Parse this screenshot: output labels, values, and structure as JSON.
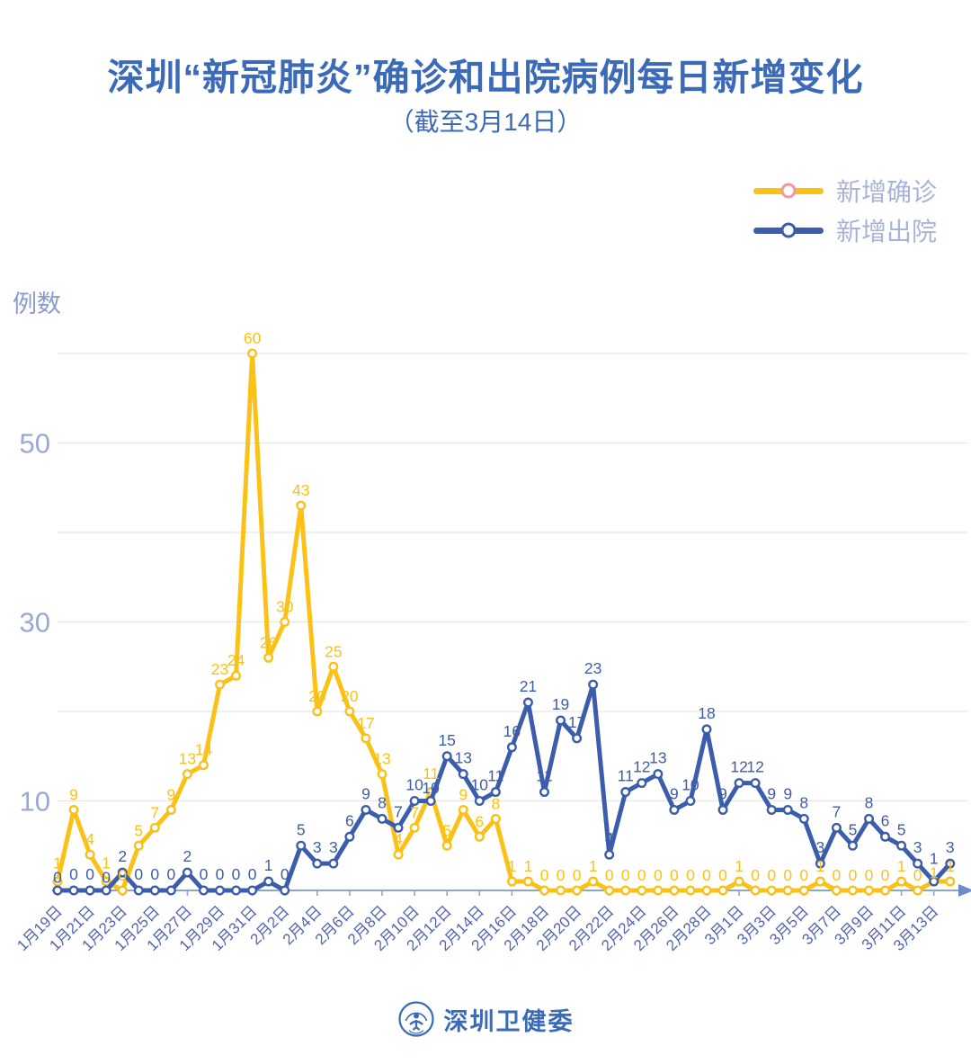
{
  "title": "深圳“新冠肺炎”确诊和出院病例每日新增变化",
  "subtitle": "（截至3月14日）",
  "y_axis_name": "例数",
  "legend": [
    {
      "label": "新增确诊",
      "color": "#fcc117",
      "marker_stroke": "#f09a9a"
    },
    {
      "label": "新增出院",
      "color": "#3c5dac",
      "marker_stroke": "#3c5dac"
    }
  ],
  "footer": {
    "brand": "深圳卫健委"
  },
  "colors": {
    "title": "#3a6ab8",
    "confirmed_line": "#fcc117",
    "discharged_line": "#3c5dac",
    "gridline": "#e6e6e6",
    "axis_line": "#8ea6cf",
    "axis_arrow": "#6b8cc9",
    "y_tick_text": "#9aa8d4",
    "x_tick_text": "#5264b0",
    "legend_text": "#a9b3d8"
  },
  "chart_data": {
    "type": "line",
    "title": "深圳“新冠肺炎”确诊和出院病例每日新增变化（截至3月14日）",
    "xlabel": "",
    "ylabel": "例数",
    "ylim": [
      0,
      60
    ],
    "grid": true,
    "grid_step": 10,
    "y_ticks": [
      10,
      30,
      50
    ],
    "x_tick_every": 2,
    "legend_position": "top-right",
    "point_labels": true,
    "x": [
      "1月19日",
      "1月20日",
      "1月21日",
      "1月22日",
      "1月23日",
      "1月24日",
      "1月25日",
      "1月26日",
      "1月27日",
      "1月28日",
      "1月29日",
      "1月30日",
      "1月31日",
      "2月1日",
      "2月2日",
      "2月3日",
      "2月4日",
      "2月5日",
      "2月6日",
      "2月7日",
      "2月8日",
      "2月9日",
      "2月10日",
      "2月11日",
      "2月12日",
      "2月13日",
      "2月14日",
      "2月15日",
      "2月16日",
      "2月17日",
      "2月18日",
      "2月19日",
      "2月20日",
      "2月21日",
      "2月22日",
      "2月23日",
      "2月24日",
      "2月25日",
      "2月26日",
      "2月27日",
      "2月28日",
      "2月29日",
      "3月1日",
      "3月2日",
      "3月3日",
      "3月4日",
      "3月5日",
      "3月6日",
      "3月7日",
      "3月8日",
      "3月9日",
      "3月10日",
      "3月11日",
      "3月12日",
      "3月13日",
      "3月14日"
    ],
    "series": [
      {
        "name": "新增确诊",
        "color": "#fcc117",
        "values": [
          1,
          9,
          4,
          1,
          0,
          5,
          7,
          9,
          13,
          14,
          23,
          24,
          60,
          26,
          30,
          43,
          20,
          25,
          20,
          17,
          13,
          4,
          7,
          11,
          5,
          9,
          6,
          8,
          1,
          1,
          0,
          0,
          0,
          1,
          0,
          0,
          0,
          0,
          0,
          0,
          0,
          0,
          1,
          0,
          0,
          0,
          0,
          1,
          0,
          0,
          0,
          0,
          1,
          0,
          1,
          1
        ]
      },
      {
        "name": "新增出院",
        "color": "#3c5dac",
        "values": [
          0,
          0,
          0,
          0,
          2,
          0,
          0,
          0,
          2,
          0,
          0,
          0,
          0,
          1,
          0,
          5,
          3,
          3,
          6,
          9,
          8,
          7,
          10,
          10,
          15,
          13,
          10,
          11,
          16,
          21,
          11,
          19,
          17,
          23,
          4,
          11,
          12,
          13,
          9,
          10,
          18,
          9,
          12,
          12,
          9,
          9,
          8,
          3,
          7,
          5,
          8,
          6,
          5,
          3,
          1,
          3
        ]
      }
    ]
  }
}
